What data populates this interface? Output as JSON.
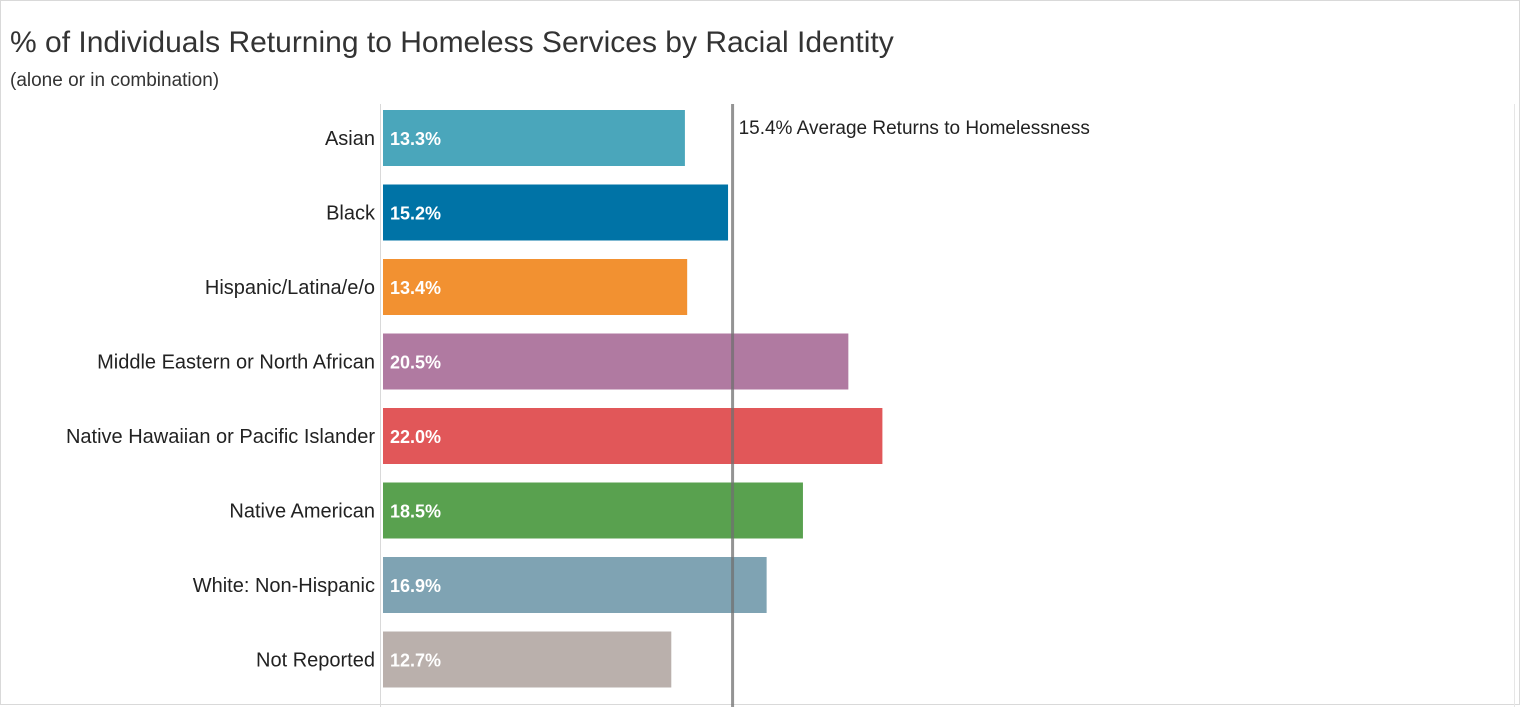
{
  "chart_data": {
    "type": "bar",
    "orientation": "horizontal",
    "title": "% of Individuals Returning to Homeless Services by Racial Identity",
    "subtitle": "(alone or in combination)",
    "categories": [
      "Asian",
      "Black",
      "Hispanic/Latina/e/o",
      "Middle Eastern or North African",
      "Native Hawaiian or Pacific Islander",
      "Native American",
      "White: Non-Hispanic",
      "Not Reported"
    ],
    "values": [
      13.3,
      15.2,
      13.4,
      20.5,
      22.0,
      18.5,
      16.9,
      12.7
    ],
    "value_labels": [
      "13.3%",
      "15.2%",
      "13.4%",
      "20.5%",
      "22.0%",
      "18.5%",
      "16.9%",
      "12.7%"
    ],
    "colors": [
      "#4aa6bb",
      "#0073a6",
      "#f29131",
      "#b07aa1",
      "#e15759",
      "#59a14f",
      "#7fa3b3",
      "#bab0ac"
    ],
    "reference_line": {
      "value": 15.4,
      "label": "15.4% Average Returns to Homelessness",
      "color": "#a0a0a0"
    },
    "xlim": [
      0,
      50
    ],
    "grid": false,
    "legend": "none"
  }
}
